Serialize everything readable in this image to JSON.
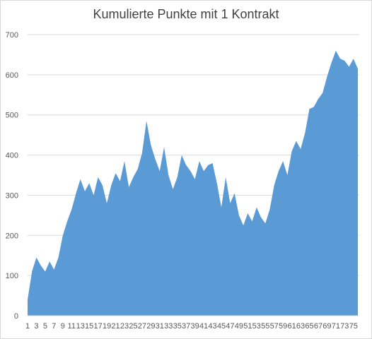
{
  "chart_data": {
    "type": "area",
    "title": "Kumulierte Punkte mit 1 Kontrakt",
    "xlabel": "",
    "ylabel": "",
    "ylim": [
      0,
      700
    ],
    "y_ticks": [
      0,
      100,
      200,
      300,
      400,
      500,
      600,
      700
    ],
    "grid": true,
    "legend": "none",
    "series_color": "#5b9bd5",
    "grid_color": "#d9d9d9",
    "x_tick_labels": [
      "1",
      "3",
      "5",
      "7",
      "9",
      "11",
      "13",
      "15",
      "17",
      "19",
      "21",
      "23",
      "25",
      "27",
      "29",
      "31",
      "33",
      "35",
      "37",
      "39",
      "41",
      "43",
      "45",
      "47",
      "49",
      "51",
      "53",
      "55",
      "57",
      "59",
      "61",
      "63",
      "65",
      "67",
      "69",
      "71",
      "73",
      "75"
    ],
    "x": [
      1,
      2,
      3,
      4,
      5,
      6,
      7,
      8,
      9,
      10,
      11,
      12,
      13,
      14,
      15,
      16,
      17,
      18,
      19,
      20,
      21,
      22,
      23,
      24,
      25,
      26,
      27,
      28,
      29,
      30,
      31,
      32,
      33,
      34,
      35,
      36,
      37,
      38,
      39,
      40,
      41,
      42,
      43,
      44,
      45,
      46,
      47,
      48,
      49,
      50,
      51,
      52,
      53,
      54,
      55,
      56,
      57,
      58,
      59,
      60,
      61,
      62,
      63,
      64,
      65,
      66,
      67,
      68,
      69,
      70,
      71,
      72,
      73,
      74,
      75,
      76
    ],
    "values": [
      40,
      110,
      145,
      125,
      110,
      135,
      115,
      145,
      200,
      235,
      265,
      305,
      340,
      310,
      330,
      300,
      345,
      325,
      280,
      325,
      355,
      335,
      385,
      320,
      345,
      365,
      405,
      485,
      425,
      390,
      360,
      420,
      350,
      315,
      345,
      400,
      375,
      360,
      340,
      385,
      360,
      375,
      380,
      330,
      270,
      345,
      280,
      305,
      250,
      225,
      255,
      235,
      270,
      245,
      230,
      265,
      325,
      360,
      385,
      350,
      410,
      435,
      415,
      455,
      515,
      520,
      540,
      555,
      595,
      630,
      660,
      640,
      635,
      620,
      640,
      615
    ]
  }
}
